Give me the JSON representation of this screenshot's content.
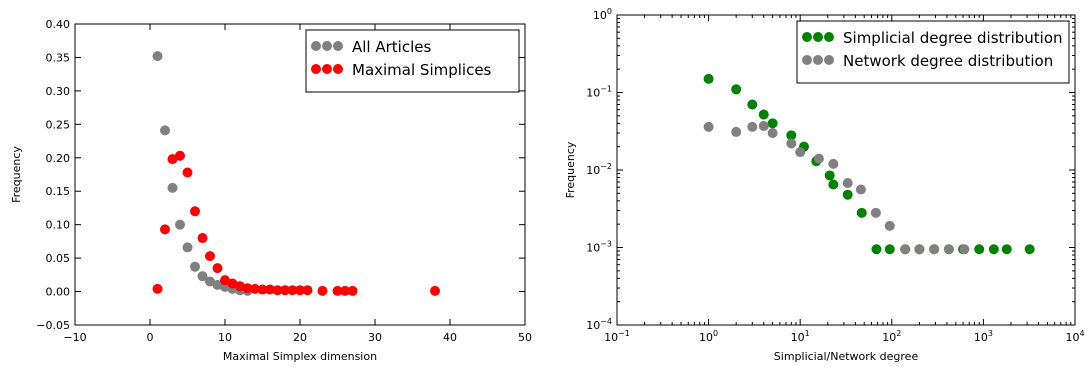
{
  "chart_data": [
    {
      "type": "scatter",
      "xlabel": "Maximal Simplex dimension",
      "ylabel": "Frequency",
      "xlim": [
        -10,
        50
      ],
      "ylim": [
        -0.05,
        0.4
      ],
      "xscale": "linear",
      "yscale": "linear",
      "xticks": [
        -10,
        0,
        10,
        20,
        30,
        40,
        50
      ],
      "xtick_labels": [
        "−10",
        "0",
        "10",
        "20",
        "30",
        "40",
        "50"
      ],
      "yticks": [
        -0.05,
        0.0,
        0.05,
        0.1,
        0.15,
        0.2,
        0.25,
        0.3,
        0.35,
        0.4
      ],
      "ytick_labels": [
        "−0.05",
        "0.00",
        "0.05",
        "0.10",
        "0.15",
        "0.20",
        "0.25",
        "0.30",
        "0.35",
        "0.40"
      ],
      "grid": false,
      "legend_position": "top-right",
      "series": [
        {
          "name": "All Articles",
          "color": "#808080",
          "x": [
            1,
            2,
            3,
            4,
            5,
            6,
            7,
            8,
            9,
            10,
            11,
            12,
            13
          ],
          "y": [
            0.352,
            0.241,
            0.155,
            0.1,
            0.066,
            0.037,
            0.023,
            0.015,
            0.01,
            0.007,
            0.004,
            0.002,
            0.001
          ]
        },
        {
          "name": "Maximal Simplices",
          "color": "#ff0000",
          "x": [
            1,
            2,
            3,
            4,
            5,
            6,
            7,
            8,
            9,
            10,
            11,
            12,
            13,
            14,
            15,
            16,
            17,
            18,
            19,
            20,
            21,
            23,
            25,
            26,
            27,
            38
          ],
          "y": [
            0.004,
            0.093,
            0.198,
            0.203,
            0.178,
            0.12,
            0.08,
            0.053,
            0.035,
            0.017,
            0.012,
            0.008,
            0.005,
            0.004,
            0.003,
            0.003,
            0.002,
            0.002,
            0.002,
            0.002,
            0.002,
            0.001,
            0.001,
            0.001,
            0.001,
            0.001
          ]
        }
      ]
    },
    {
      "type": "scatter",
      "xlabel": "Simplicial/Network degree",
      "ylabel": "Frequency",
      "xlim": [
        0.1,
        10000
      ],
      "ylim": [
        0.0001,
        1
      ],
      "xscale": "log",
      "yscale": "log",
      "xticks": [
        0.1,
        1,
        10,
        100,
        1000,
        10000
      ],
      "xtick_labels": [
        {
          "base": "10",
          "exp": "−1"
        },
        {
          "base": "10",
          "exp": "0"
        },
        {
          "base": "10",
          "exp": "1"
        },
        {
          "base": "10",
          "exp": "2"
        },
        {
          "base": "10",
          "exp": "3"
        },
        {
          "base": "10",
          "exp": "4"
        }
      ],
      "yticks": [
        0.0001,
        0.001,
        0.01,
        0.1,
        1
      ],
      "ytick_labels": [
        {
          "base": "10",
          "exp": "−4"
        },
        {
          "base": "10",
          "exp": "−3"
        },
        {
          "base": "10",
          "exp": "−2"
        },
        {
          "base": "10",
          "exp": "−1"
        },
        {
          "base": "10",
          "exp": "0"
        }
      ],
      "grid": false,
      "legend_position": "top-right",
      "series": [
        {
          "name": "Simplicial degree distribution",
          "color": "#008000",
          "x": [
            1,
            2,
            3,
            4,
            5,
            8,
            11,
            15,
            21,
            23,
            33,
            47,
            68,
            95,
            140,
            200,
            290,
            420,
            600,
            900,
            1300,
            1800,
            3200
          ],
          "y": [
            0.15,
            0.11,
            0.07,
            0.052,
            0.04,
            0.028,
            0.02,
            0.013,
            0.0085,
            0.0065,
            0.0048,
            0.0028,
            0.00095,
            0.00095,
            0.00095,
            0.00095,
            0.00095,
            0.00095,
            0.00095,
            0.00095,
            0.00095,
            0.00095,
            0.00095
          ]
        },
        {
          "name": "Network degree distribution",
          "color": "#808080",
          "x": [
            1,
            2,
            3,
            4,
            5,
            8,
            10,
            16,
            23,
            33,
            46,
            67,
            95,
            140,
            200,
            290,
            420,
            620
          ],
          "y": [
            0.036,
            0.031,
            0.036,
            0.037,
            0.03,
            0.022,
            0.017,
            0.014,
            0.012,
            0.0068,
            0.0056,
            0.0028,
            0.0019,
            0.00095,
            0.00095,
            0.00095,
            0.00095,
            0.00095
          ]
        }
      ]
    }
  ]
}
